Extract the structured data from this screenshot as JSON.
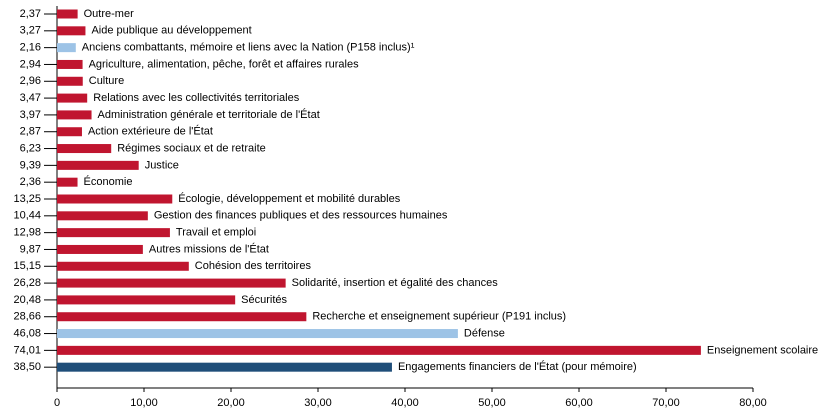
{
  "chart_data": {
    "type": "barh",
    "categories": [
      "Outre-mer",
      "Aide publique au développement",
      "Anciens combattants, mémoire et liens avec la Nation (P158 inclus)¹",
      "Agriculture, alimentation, pêche, forêt et affaires rurales",
      "Culture",
      "Relations avec les collectivités territoriales",
      "Administration générale et territoriale de l'État",
      "Action extérieure de l'État",
      "Régimes sociaux et de retraite",
      "Justice",
      "Économie",
      "Écologie, développement et mobilité durables",
      "Gestion des finances publiques et des ressources humaines",
      "Travail et emploi",
      "Autres missions de l'État",
      "Cohésion des territoires",
      "Solidarité, insertion et égalité des chances",
      "Sécurités",
      "Recherche et enseignement supérieur (P191 inclus)",
      "Défense",
      "Enseignement scolaire",
      "Engagements financiers de l'État (pour mémoire)"
    ],
    "values": [
      2.37,
      3.27,
      2.16,
      2.94,
      2.96,
      3.47,
      3.97,
      2.87,
      6.23,
      9.39,
      2.36,
      13.25,
      10.44,
      12.98,
      9.87,
      15.15,
      26.28,
      20.48,
      28.66,
      46.08,
      74.01,
      38.5
    ],
    "value_labels": [
      "2,37",
      "3,27",
      "2,16",
      "2,94",
      "2,96",
      "3,47",
      "3,97",
      "2,87",
      "6,23",
      "9,39",
      "2,36",
      "13,25",
      "10,44",
      "12,98",
      "9,87",
      "15,15",
      "26,28",
      "20,48",
      "28,66",
      "46,08",
      "74,01",
      "38,50"
    ],
    "colors": [
      "#c0152f",
      "#c0152f",
      "#9dc3e6",
      "#c0152f",
      "#c0152f",
      "#c0152f",
      "#c0152f",
      "#c0152f",
      "#c0152f",
      "#c0152f",
      "#c0152f",
      "#c0152f",
      "#c0152f",
      "#c0152f",
      "#c0152f",
      "#c0152f",
      "#c0152f",
      "#c0152f",
      "#c0152f",
      "#9dc3e6",
      "#c0152f",
      "#1f4e79"
    ],
    "xlim": [
      0,
      80
    ],
    "xticks": [
      0,
      {
        "value": 10,
        "label": "10,00"
      },
      {
        "value": 20,
        "label": "20,00"
      },
      {
        "value": 30,
        "label": "30,00"
      },
      {
        "value": 40,
        "label": "40,00"
      },
      {
        "value": 50,
        "label": "50,00"
      },
      {
        "value": 60,
        "label": "60,00"
      },
      {
        "value": 70,
        "label": "70,00"
      },
      {
        "value": 80,
        "label": "80,00"
      }
    ]
  }
}
